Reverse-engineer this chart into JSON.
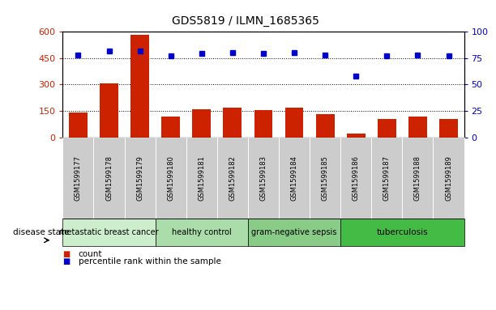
{
  "title": "GDS5819 / ILMN_1685365",
  "samples": [
    "GSM1599177",
    "GSM1599178",
    "GSM1599179",
    "GSM1599180",
    "GSM1599181",
    "GSM1599182",
    "GSM1599183",
    "GSM1599184",
    "GSM1599185",
    "GSM1599186",
    "GSM1599187",
    "GSM1599188",
    "GSM1599189"
  ],
  "counts": [
    140,
    308,
    580,
    120,
    158,
    168,
    155,
    170,
    132,
    22,
    105,
    120,
    105
  ],
  "percentiles": [
    78,
    82,
    82,
    77,
    79,
    80,
    79,
    80,
    78,
    58,
    77,
    78,
    77
  ],
  "disease_groups": [
    {
      "label": "metastatic breast cancer",
      "start": 0,
      "end": 3,
      "color": "#cceecc"
    },
    {
      "label": "healthy control",
      "start": 3,
      "end": 6,
      "color": "#aaddaa"
    },
    {
      "label": "gram-negative sepsis",
      "start": 6,
      "end": 9,
      "color": "#88cc88"
    },
    {
      "label": "tuberculosis",
      "start": 9,
      "end": 13,
      "color": "#44bb44"
    }
  ],
  "ylim_left": [
    0,
    600
  ],
  "ylim_right": [
    0,
    100
  ],
  "yticks_left": [
    0,
    150,
    300,
    450,
    600
  ],
  "yticks_right": [
    0,
    25,
    50,
    75,
    100
  ],
  "bar_color": "#cc2200",
  "dot_color": "#0000cc",
  "grid_color": "#000000",
  "left_tick_color": "#cc2200",
  "right_tick_color": "#0000cc",
  "legend_bar_label": "count",
  "legend_dot_label": "percentile rank within the sample",
  "disease_state_label": "disease state",
  "bg_color": "#ffffff",
  "sample_box_color": "#cccccc",
  "sep_color": "#aaaaaa"
}
